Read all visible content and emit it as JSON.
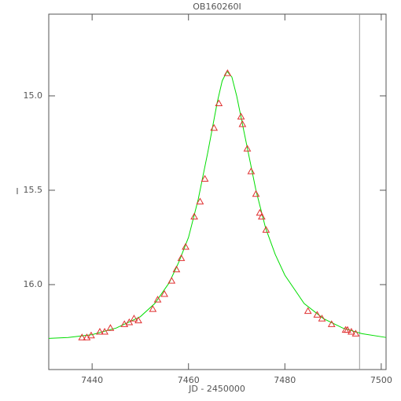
{
  "chart_data": {
    "type": "scatter",
    "title": "OB160260I",
    "x_label": "JD - 2450000",
    "y_label": "I",
    "xlim": [
      7431,
      7501
    ],
    "ylim": [
      16.45,
      14.567
    ],
    "xticks": [
      7440,
      7460,
      7480,
      7500
    ],
    "yticks": [
      {
        "value": 15,
        "label": "15.0"
      },
      15.5,
      {
        "value": 16,
        "label": "16.0"
      }
    ],
    "vline": 7495.5,
    "vline_color": "#999999",
    "points": {
      "color": "#e03030",
      "x": [
        7437.9,
        7438.9,
        7439.8,
        7441.6,
        7442.6,
        7443.8,
        7446.7,
        7447.7,
        7448.7,
        7449.6,
        7452.6,
        7453.6,
        7455.0,
        7456.5,
        7457.5,
        7458.5,
        7459.4,
        7461.2,
        7462.4,
        7463.4,
        7465.3,
        7466.3,
        7468.1,
        7470.9,
        7471.2,
        7472.2,
        7473.0,
        7474.0,
        7474.8,
        7475.2,
        7476.1,
        7484.8,
        7486.7,
        7487.7,
        7489.7,
        7492.6,
        7493.0,
        7493.8,
        7494.7
      ],
      "values": [
        16.28,
        16.28,
        16.27,
        16.25,
        16.25,
        16.23,
        16.21,
        16.2,
        16.18,
        16.19,
        16.13,
        16.08,
        16.05,
        15.98,
        15.92,
        15.86,
        15.8,
        15.64,
        15.56,
        15.44,
        15.17,
        15.04,
        14.88,
        15.11,
        15.15,
        15.28,
        15.4,
        15.52,
        15.62,
        15.64,
        15.71,
        16.14,
        16.16,
        16.18,
        16.21,
        16.24,
        16.24,
        16.25,
        16.26
      ]
    },
    "model": {
      "color": "#00dd00",
      "x": [
        7431,
        7435,
        7440,
        7445,
        7450,
        7453,
        7456,
        7458,
        7460,
        7462,
        7464,
        7466,
        7467,
        7468,
        7469,
        7470,
        7472,
        7474,
        7476,
        7478,
        7480,
        7484,
        7488,
        7492,
        7496,
        7501
      ],
      "values": [
        16.285,
        16.28,
        16.265,
        16.23,
        16.17,
        16.1,
        15.99,
        15.88,
        15.75,
        15.55,
        15.3,
        15.03,
        14.92,
        14.87,
        14.9,
        15.0,
        15.25,
        15.5,
        15.7,
        15.84,
        15.95,
        16.1,
        16.18,
        16.23,
        16.26,
        16.28
      ]
    }
  }
}
